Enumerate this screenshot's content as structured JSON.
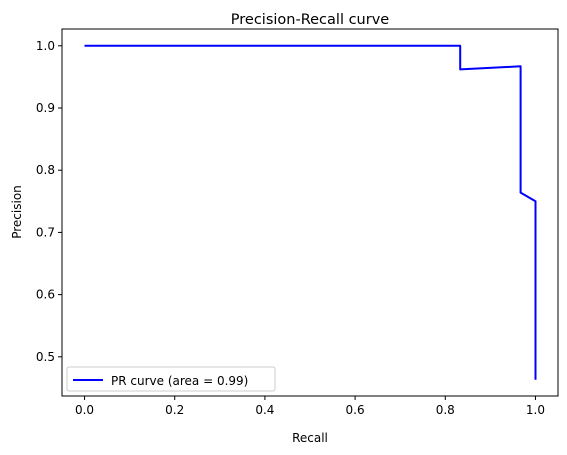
{
  "chart_data": {
    "type": "line",
    "title": "Precision-Recall curve",
    "xlabel": "Recall",
    "ylabel": "Precision",
    "xlim": [
      -0.05,
      1.05
    ],
    "ylim": [
      0.437,
      1.027
    ],
    "xticks": [
      0.0,
      0.2,
      0.4,
      0.6,
      0.8,
      1.0
    ],
    "yticks": [
      0.5,
      0.6,
      0.7,
      0.8,
      0.9,
      1.0
    ],
    "xtick_labels": [
      "0.0",
      "0.2",
      "0.4",
      "0.6",
      "0.8",
      "1.0"
    ],
    "ytick_labels": [
      "0.5",
      "0.6",
      "0.7",
      "0.8",
      "0.9",
      "1.0"
    ],
    "grid": false,
    "legend_position": "lower-left",
    "series": [
      {
        "name": "PR curve (area = 0.99)",
        "color": "#0000ff",
        "x": [
          0.0,
          0.833,
          0.833,
          0.967,
          0.967,
          1.0,
          1.0
        ],
        "y": [
          1.0,
          1.0,
          0.962,
          0.967,
          0.764,
          0.75,
          0.463
        ]
      }
    ]
  }
}
